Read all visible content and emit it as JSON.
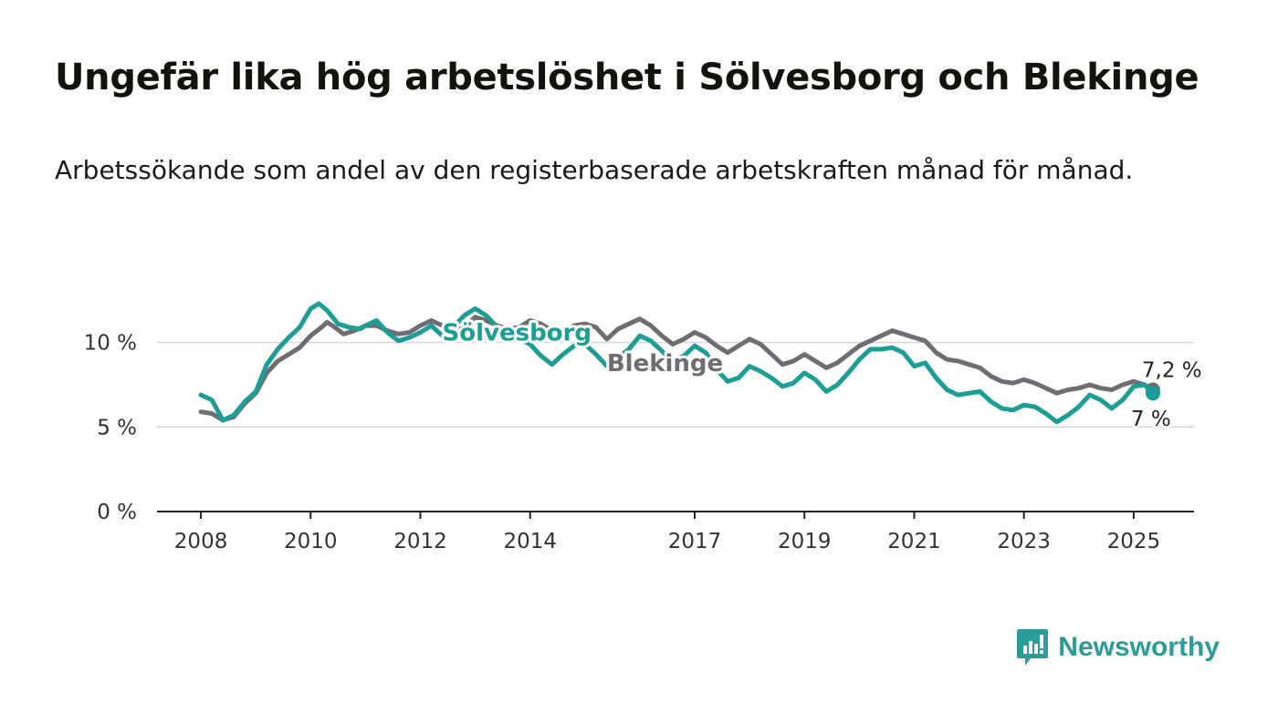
{
  "title": "Ungefär lika hög arbetslöshet i Sölvesborg och Blekinge",
  "subtitle": "Arbetssökande som andel av den registerbaserade arbetskraften månad för månad.",
  "brand": {
    "name": "Newsworthy",
    "color": "#2b9c97",
    "icon": "newsworthy-logo-icon"
  },
  "chart_data": {
    "type": "line",
    "xlim": [
      2007.2,
      2026.1
    ],
    "ylim": [
      0,
      13
    ],
    "yticks": [
      {
        "value": 0,
        "label": "0 %"
      },
      {
        "value": 5,
        "label": "5 %"
      },
      {
        "value": 10,
        "label": "10 %"
      }
    ],
    "xticks": [
      {
        "value": 2008,
        "label": "2008"
      },
      {
        "value": 2010,
        "label": "2010"
      },
      {
        "value": 2012,
        "label": "2012"
      },
      {
        "value": 2014,
        "label": "2014"
      },
      {
        "value": 2017,
        "label": "2017"
      },
      {
        "value": 2019,
        "label": "2019"
      },
      {
        "value": 2021,
        "label": "2021"
      },
      {
        "value": 2023,
        "label": "2023"
      },
      {
        "value": 2025,
        "label": "2025"
      }
    ],
    "grid": true,
    "series": [
      {
        "name": "Blekinge",
        "color": "#6f6c72",
        "end_label": "7,2 %",
        "label_at": [
          2015.4,
          8.8
        ],
        "points": [
          [
            2008.0,
            5.9
          ],
          [
            2008.2,
            5.8
          ],
          [
            2008.4,
            5.4
          ],
          [
            2008.6,
            5.6
          ],
          [
            2008.8,
            6.4
          ],
          [
            2009.0,
            7.0
          ],
          [
            2009.2,
            8.2
          ],
          [
            2009.4,
            8.9
          ],
          [
            2009.6,
            9.3
          ],
          [
            2009.8,
            9.7
          ],
          [
            2010.0,
            10.4
          ],
          [
            2010.2,
            10.9
          ],
          [
            2010.3,
            11.2
          ],
          [
            2010.4,
            11.0
          ],
          [
            2010.6,
            10.5
          ],
          [
            2010.8,
            10.7
          ],
          [
            2011.0,
            11.0
          ],
          [
            2011.2,
            11.0
          ],
          [
            2011.4,
            10.7
          ],
          [
            2011.6,
            10.5
          ],
          [
            2011.8,
            10.6
          ],
          [
            2012.0,
            11.0
          ],
          [
            2012.2,
            11.3
          ],
          [
            2012.4,
            11.0
          ],
          [
            2012.6,
            10.6
          ],
          [
            2012.8,
            10.9
          ],
          [
            2013.0,
            11.5
          ],
          [
            2013.2,
            11.3
          ],
          [
            2013.4,
            11.0
          ],
          [
            2013.6,
            10.8
          ],
          [
            2013.8,
            10.9
          ],
          [
            2014.0,
            11.3
          ],
          [
            2014.2,
            11.1
          ],
          [
            2014.4,
            10.7
          ],
          [
            2014.6,
            10.5
          ],
          [
            2014.8,
            11.0
          ],
          [
            2015.0,
            11.1
          ],
          [
            2015.2,
            10.9
          ],
          [
            2015.4,
            10.2
          ],
          [
            2015.6,
            10.8
          ],
          [
            2015.8,
            11.1
          ],
          [
            2016.0,
            11.4
          ],
          [
            2016.2,
            11.0
          ],
          [
            2016.4,
            10.4
          ],
          [
            2016.6,
            9.9
          ],
          [
            2016.8,
            10.2
          ],
          [
            2017.0,
            10.6
          ],
          [
            2017.2,
            10.3
          ],
          [
            2017.4,
            9.8
          ],
          [
            2017.6,
            9.4
          ],
          [
            2017.8,
            9.8
          ],
          [
            2018.0,
            10.2
          ],
          [
            2018.2,
            9.9
          ],
          [
            2018.4,
            9.3
          ],
          [
            2018.6,
            8.7
          ],
          [
            2018.8,
            8.9
          ],
          [
            2019.0,
            9.3
          ],
          [
            2019.2,
            8.9
          ],
          [
            2019.4,
            8.5
          ],
          [
            2019.6,
            8.8
          ],
          [
            2019.8,
            9.3
          ],
          [
            2020.0,
            9.8
          ],
          [
            2020.2,
            10.1
          ],
          [
            2020.4,
            10.4
          ],
          [
            2020.6,
            10.7
          ],
          [
            2020.8,
            10.5
          ],
          [
            2021.0,
            10.3
          ],
          [
            2021.2,
            10.1
          ],
          [
            2021.4,
            9.4
          ],
          [
            2021.6,
            9.0
          ],
          [
            2021.8,
            8.9
          ],
          [
            2022.0,
            8.7
          ],
          [
            2022.2,
            8.5
          ],
          [
            2022.4,
            8.0
          ],
          [
            2022.6,
            7.7
          ],
          [
            2022.8,
            7.6
          ],
          [
            2023.0,
            7.8
          ],
          [
            2023.2,
            7.6
          ],
          [
            2023.4,
            7.3
          ],
          [
            2023.6,
            7.0
          ],
          [
            2023.8,
            7.2
          ],
          [
            2024.0,
            7.3
          ],
          [
            2024.2,
            7.5
          ],
          [
            2024.4,
            7.3
          ],
          [
            2024.6,
            7.2
          ],
          [
            2024.8,
            7.5
          ],
          [
            2025.0,
            7.7
          ],
          [
            2025.2,
            7.5
          ],
          [
            2025.35,
            7.2
          ]
        ]
      },
      {
        "name": "Sölvesborg",
        "color": "#1a9e95",
        "end_label": "7 %",
        "label_at": [
          2012.4,
          10.6
        ],
        "points": [
          [
            2008.0,
            6.9
          ],
          [
            2008.2,
            6.6
          ],
          [
            2008.4,
            5.4
          ],
          [
            2008.6,
            5.7
          ],
          [
            2008.8,
            6.5
          ],
          [
            2009.0,
            7.1
          ],
          [
            2009.2,
            8.7
          ],
          [
            2009.4,
            9.6
          ],
          [
            2009.6,
            10.3
          ],
          [
            2009.8,
            10.9
          ],
          [
            2010.0,
            12.0
          ],
          [
            2010.15,
            12.3
          ],
          [
            2010.3,
            11.9
          ],
          [
            2010.5,
            11.1
          ],
          [
            2010.7,
            10.9
          ],
          [
            2010.9,
            10.8
          ],
          [
            2011.0,
            11.0
          ],
          [
            2011.2,
            11.3
          ],
          [
            2011.4,
            10.6
          ],
          [
            2011.6,
            10.1
          ],
          [
            2011.8,
            10.3
          ],
          [
            2012.0,
            10.6
          ],
          [
            2012.2,
            11.0
          ],
          [
            2012.4,
            10.4
          ],
          [
            2012.6,
            10.9
          ],
          [
            2012.8,
            11.6
          ],
          [
            2013.0,
            12.0
          ],
          [
            2013.2,
            11.6
          ],
          [
            2013.4,
            10.9
          ],
          [
            2013.6,
            10.5
          ],
          [
            2013.8,
            10.2
          ],
          [
            2014.0,
            9.9
          ],
          [
            2014.2,
            9.2
          ],
          [
            2014.4,
            8.7
          ],
          [
            2014.6,
            9.3
          ],
          [
            2014.8,
            9.8
          ],
          [
            2015.0,
            9.9
          ],
          [
            2015.2,
            9.3
          ],
          [
            2015.4,
            8.6
          ],
          [
            2015.6,
            9.1
          ],
          [
            2015.8,
            9.6
          ],
          [
            2016.0,
            10.4
          ],
          [
            2016.2,
            10.1
          ],
          [
            2016.4,
            9.5
          ],
          [
            2016.6,
            8.9
          ],
          [
            2016.8,
            9.2
          ],
          [
            2017.0,
            9.8
          ],
          [
            2017.2,
            9.4
          ],
          [
            2017.4,
            8.4
          ],
          [
            2017.6,
            7.7
          ],
          [
            2017.8,
            7.9
          ],
          [
            2018.0,
            8.6
          ],
          [
            2018.2,
            8.3
          ],
          [
            2018.4,
            7.9
          ],
          [
            2018.6,
            7.4
          ],
          [
            2018.8,
            7.6
          ],
          [
            2019.0,
            8.2
          ],
          [
            2019.2,
            7.8
          ],
          [
            2019.4,
            7.1
          ],
          [
            2019.6,
            7.5
          ],
          [
            2019.8,
            8.2
          ],
          [
            2020.0,
            9.0
          ],
          [
            2020.2,
            9.6
          ],
          [
            2020.4,
            9.6
          ],
          [
            2020.6,
            9.7
          ],
          [
            2020.8,
            9.4
          ],
          [
            2021.0,
            8.6
          ],
          [
            2021.2,
            8.8
          ],
          [
            2021.4,
            7.9
          ],
          [
            2021.6,
            7.2
          ],
          [
            2021.8,
            6.9
          ],
          [
            2022.0,
            7.0
          ],
          [
            2022.2,
            7.1
          ],
          [
            2022.4,
            6.5
          ],
          [
            2022.6,
            6.1
          ],
          [
            2022.8,
            6.0
          ],
          [
            2023.0,
            6.3
          ],
          [
            2023.2,
            6.2
          ],
          [
            2023.4,
            5.8
          ],
          [
            2023.6,
            5.3
          ],
          [
            2023.8,
            5.7
          ],
          [
            2024.0,
            6.2
          ],
          [
            2024.2,
            6.9
          ],
          [
            2024.4,
            6.6
          ],
          [
            2024.6,
            6.1
          ],
          [
            2024.8,
            6.6
          ],
          [
            2025.0,
            7.4
          ],
          [
            2025.2,
            7.5
          ],
          [
            2025.35,
            7.0
          ]
        ]
      }
    ]
  }
}
